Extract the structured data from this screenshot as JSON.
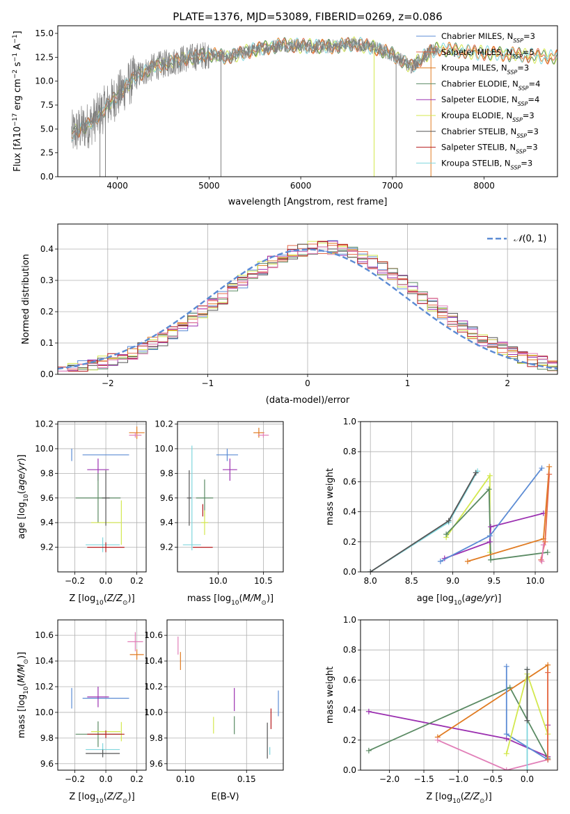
{
  "title": "PLATE=1376, MJD=53089, FIBERID=0269, z=0.086",
  "colors": {
    "chabrier_miles": "#5b8bd4",
    "salpeter_miles": "#e56a4a",
    "kroupa_miles": "#e07b22",
    "chabrier_elodie": "#5a8a63",
    "salpeter_elodie": "#9b30b0",
    "kroupa_elodie": "#d3e84e",
    "chabrier_stelib": "#555555",
    "salpeter_stelib": "#b5191c",
    "kroupa_stelib": "#7fd6dd",
    "data": "#808080",
    "normal": "#5b8bd4",
    "pink": "#e17fb8"
  },
  "chart_data": [
    {
      "id": "spectrum",
      "type": "line",
      "xlabel": "wavelength [Angstrom, rest frame]",
      "ylabel_html": "Flux [f<tspan font-style='italic'>λ</tspan>10<tspan baseline-shift='super' font-size='9'>−17</tspan> erg cm<tspan baseline-shift='super' font-size='9'>−2</tspan> s<tspan baseline-shift='super' font-size='9'>−1</tspan> A<tspan baseline-shift='super' font-size='9'>−1</tspan>]",
      "xlim": [
        3350,
        8800
      ],
      "ylim": [
        0,
        15.8
      ],
      "xticks": [
        4000,
        5000,
        6000,
        7000,
        8000
      ],
      "yticks": [
        "0.0",
        "2.5",
        "5.0",
        "7.5",
        "10.0",
        "12.5",
        "15.0"
      ],
      "legend": [
        {
          "label": "Chabrier MILES, N",
          "sub": "SSP",
          "eq": "=3",
          "color_key": "chabrier_miles"
        },
        {
          "label": "Salpeter MILES, N",
          "sub": "SSP",
          "eq": "=5",
          "color_key": "salpeter_miles"
        },
        {
          "label": "Kroupa MILES, N",
          "sub": "SSP",
          "eq": "=3",
          "color_key": "kroupa_miles"
        },
        {
          "label": "Chabrier ELODIE, N",
          "sub": "SSP",
          "eq": "=4",
          "color_key": "chabrier_elodie"
        },
        {
          "label": "Salpeter ELODIE, N",
          "sub": "SSP",
          "eq": "=4",
          "color_key": "salpeter_elodie"
        },
        {
          "label": "Kroupa ELODIE, N",
          "sub": "SSP",
          "eq": "=3",
          "color_key": "kroupa_elodie"
        },
        {
          "label": "Chabrier STELIB, N",
          "sub": "SSP",
          "eq": "=3",
          "color_key": "chabrier_stelib"
        },
        {
          "label": "Salpeter STELIB, N",
          "sub": "SSP",
          "eq": "=3",
          "color_key": "salpeter_stelib"
        },
        {
          "label": "Kroupa STELIB, N",
          "sub": "SSP",
          "eq": "=3",
          "color_key": "kroupa_stelib"
        }
      ],
      "continuum": [
        [
          3500,
          4.5
        ],
        [
          3700,
          5.5
        ],
        [
          3900,
          7.5
        ],
        [
          4000,
          8.5
        ],
        [
          4200,
          10.5
        ],
        [
          4400,
          11.5
        ],
        [
          4700,
          12.3
        ],
        [
          5000,
          12.8
        ],
        [
          5200,
          12.5
        ],
        [
          5500,
          13.3
        ],
        [
          5800,
          13.8
        ],
        [
          6000,
          13.7
        ],
        [
          6300,
          13.6
        ],
        [
          6600,
          13.9
        ],
        [
          6800,
          13.5
        ],
        [
          7000,
          12.8
        ],
        [
          7100,
          12.2
        ],
        [
          7200,
          11.5
        ],
        [
          7400,
          13.0
        ],
        [
          7500,
          13.4
        ],
        [
          7700,
          13.2
        ],
        [
          7900,
          13.0
        ],
        [
          8300,
          12.8
        ],
        [
          8800,
          12.5
        ]
      ],
      "spikes": [
        5130,
        6800,
        7040,
        7420,
        3810,
        3870
      ]
    },
    {
      "id": "residuals",
      "type": "histogram",
      "xlabel": "(data-model)/error",
      "ylabel": "Normed distribution",
      "legend_label": "N(0, 1)",
      "xlim": [
        -2.5,
        2.5
      ],
      "ylim": [
        0,
        0.48
      ],
      "xticks": [
        "−2",
        "−1",
        "0",
        "1",
        "2"
      ],
      "yticks": [
        "0.0",
        "0.1",
        "0.2",
        "0.3",
        "0.4"
      ],
      "bin_width": 0.1
    },
    {
      "id": "age_vs_Z",
      "type": "scatter",
      "xlabel": "Z [log10(Z/Z⊙)]",
      "ylabel": "age [log10(age/yr)]",
      "xlim": [
        -0.31,
        0.26
      ],
      "ylim": [
        9.0,
        10.22
      ],
      "xticks": [
        "−0.2",
        "0.0",
        "0.2"
      ],
      "yticks": [
        "9.2",
        "9.4",
        "9.6",
        "9.8",
        "10.0",
        "10.2"
      ],
      "points": [
        {
          "k": "chabrier_miles",
          "x": -0.0,
          "y": 9.95,
          "xe": 0.26,
          "ye": 0.1,
          "vx": -0.22
        },
        {
          "k": "salpeter_elodie",
          "x": -0.05,
          "y": 9.83,
          "xe": 0.1,
          "ye": 0.18
        },
        {
          "k": "chabrier_elodie",
          "x": -0.05,
          "y": 9.6,
          "xe": 0.25,
          "ye": 0.4
        },
        {
          "k": "kroupa_elodie",
          "x": 0.0,
          "y": 9.4,
          "xe": 0.15,
          "ye": 0.36,
          "vx": 0.1
        },
        {
          "k": "kroupa_stelib",
          "x": -0.02,
          "y": 9.22,
          "xe": 0.18,
          "ye": 0.12
        },
        {
          "k": "salpeter_stelib",
          "x": 0.0,
          "y": 9.2,
          "xe": 0.2,
          "ye": 0.08
        },
        {
          "k": "kroupa_miles",
          "x": 0.2,
          "y": 10.13,
          "xe": 0.06,
          "ye": 0.1
        },
        {
          "k": "pink",
          "x": 0.19,
          "y": 10.11,
          "xe": 0.04,
          "ye": 0.04
        },
        {
          "k": "chabrier_stelib",
          "x": 0.0,
          "y": 9.6,
          "xe": 0.01,
          "ye": 0.45
        }
      ]
    },
    {
      "id": "age_vs_mass",
      "type": "scatter",
      "xlabel": "mass [log10(M/M⊙)]",
      "ylabel": "",
      "xlim": [
        9.55,
        10.72
      ],
      "ylim": [
        9.0,
        10.22
      ],
      "xticks": [
        "10.0",
        "10.5"
      ],
      "yticks": [
        "9.2",
        "9.4",
        "9.6",
        "9.8",
        "10.0",
        "10.2"
      ],
      "points": [
        {
          "k": "chabrier_miles",
          "x": 10.1,
          "y": 9.95,
          "xe": 0.2,
          "ye": 0.1
        },
        {
          "k": "salpeter_elodie",
          "x": 10.13,
          "y": 9.83,
          "xe": 0.12,
          "ye": 0.18
        },
        {
          "k": "chabrier_elodie",
          "x": 9.85,
          "y": 9.6,
          "xe": 0.15,
          "ye": 0.3
        },
        {
          "k": "kroupa_elodie",
          "x": 9.85,
          "y": 9.4,
          "xe": 0.04,
          "ye": 0.2
        },
        {
          "k": "kroupa_stelib",
          "x": 9.71,
          "y": 9.22,
          "xe": 0.16,
          "ye": 0.85,
          "vy": 9.6
        },
        {
          "k": "salpeter_stelib",
          "x": 9.83,
          "y": 9.2,
          "xe": 0.18,
          "ye": 0.1,
          "vy": 9.5
        },
        {
          "k": "kroupa_miles",
          "x": 10.45,
          "y": 10.13,
          "xe": 0.08,
          "ye": 0.08
        },
        {
          "k": "pink",
          "x": 10.5,
          "y": 10.11,
          "xe": 0.08,
          "ye": 0.04
        },
        {
          "k": "chabrier_stelib",
          "x": 9.68,
          "y": 9.6,
          "xe": 0.01,
          "ye": 0.45
        }
      ]
    },
    {
      "id": "weight_vs_age",
      "type": "line",
      "xlabel": "age [log10(age/yr)]",
      "ylabel": "mass weight",
      "xlim": [
        7.88,
        10.27
      ],
      "ylim": [
        0,
        1.0
      ],
      "xticks": [
        "8.0",
        "8.5",
        "9.0",
        "9.5",
        "10.0"
      ],
      "yticks": [
        "0.0",
        "0.2",
        "0.4",
        "0.6",
        "0.8",
        "1.0"
      ],
      "series": [
        {
          "k": "kroupa_stelib",
          "x": [
            8.0,
            8.95,
            9.3
          ],
          "y": [
            0.0,
            0.33,
            0.67
          ]
        },
        {
          "k": "chabrier_stelib",
          "x": [
            8.0,
            8.95,
            9.28
          ],
          "y": [
            0.0,
            0.34,
            0.66
          ]
        },
        {
          "k": "kroupa_elodie",
          "x": [
            8.92,
            9.45,
            9.45
          ],
          "y": [
            0.23,
            0.64,
            0.13
          ]
        },
        {
          "k": "chabrier_elodie",
          "x": [
            8.92,
            9.44,
            9.46,
            10.15
          ],
          "y": [
            0.25,
            0.55,
            0.08,
            0.13
          ]
        },
        {
          "k": "salpeter_elodie",
          "x": [
            8.9,
            9.45,
            9.46,
            10.1
          ],
          "y": [
            0.09,
            0.2,
            0.3,
            0.39
          ]
        },
        {
          "k": "chabrier_miles",
          "x": [
            8.85,
            9.45,
            10.08
          ],
          "y": [
            0.07,
            0.24,
            0.69
          ]
        },
        {
          "k": "kroupa_miles",
          "x": [
            9.18,
            10.1,
            10.17
          ],
          "y": [
            0.07,
            0.22,
            0.7
          ]
        },
        {
          "k": "salpeter_miles",
          "x": [
            10.07,
            10.12,
            10.17
          ],
          "y": [
            0.08,
            0.2,
            0.65
          ]
        },
        {
          "k": "pink",
          "x": [
            10.08,
            10.1
          ],
          "y": [
            0.07,
            0.18
          ]
        }
      ]
    },
    {
      "id": "mass_vs_Z",
      "type": "scatter",
      "xlabel": "Z [log10(Z/Z⊙)]",
      "ylabel": "mass [log10(M/M⊙)]",
      "xlim": [
        -0.31,
        0.26
      ],
      "ylim": [
        9.55,
        10.72
      ],
      "xticks": [
        "−0.2",
        "0.0",
        "0.2"
      ],
      "yticks": [
        "9.6",
        "9.8",
        "10.0",
        "10.2",
        "10.4",
        "10.6"
      ],
      "points": [
        {
          "k": "chabrier_miles",
          "x": -0.0,
          "y": 10.11,
          "xe": 0.26,
          "ye": 0.16,
          "vx": -0.22
        },
        {
          "k": "salpeter_elodie",
          "x": -0.05,
          "y": 10.12,
          "xe": 0.1,
          "ye": 0.16
        },
        {
          "k": "chabrier_elodie",
          "x": -0.05,
          "y": 9.83,
          "xe": 0.25,
          "ye": 0.2,
          "vx": -0.05
        },
        {
          "k": "kroupa_elodie",
          "x": 0.0,
          "y": 9.85,
          "xe": 0.15,
          "ye": 0.15,
          "vx": 0.1
        },
        {
          "k": "salpeter_stelib",
          "x": 0.0,
          "y": 9.83,
          "xe": 0.2,
          "ye": 0.06
        },
        {
          "k": "kroupa_stelib",
          "x": -0.02,
          "y": 9.71,
          "xe": 0.18,
          "ye": 0.1
        },
        {
          "k": "chabrier_stelib",
          "x": -0.02,
          "y": 9.68,
          "xe": 0.18,
          "ye": 0.06
        },
        {
          "k": "kroupa_miles",
          "x": 0.2,
          "y": 10.45,
          "xe": 0.05,
          "ye": 0.08
        },
        {
          "k": "pink",
          "x": 0.19,
          "y": 10.55,
          "xe": 0.06,
          "ye": 0.15
        }
      ]
    },
    {
      "id": "mass_vs_ebv",
      "type": "scatter",
      "xlabel": "E(B-V)",
      "ylabel": "",
      "xlim": [
        0.085,
        0.18
      ],
      "ylim": [
        9.55,
        10.72
      ],
      "xticks": [
        "0.10",
        "0.15"
      ],
      "yticks": [
        "9.6",
        "9.8",
        "10.0",
        "10.2",
        "10.4",
        "10.6"
      ],
      "points": [
        {
          "k": "pink",
          "x": 0.094,
          "y": 10.52,
          "ye": 0.14
        },
        {
          "k": "kroupa_miles",
          "x": 0.096,
          "y": 10.4,
          "ye": 0.14
        },
        {
          "k": "kroupa_elodie",
          "x": 0.123,
          "y": 9.9,
          "ye": 0.13
        },
        {
          "k": "chabrier_elodie",
          "x": 0.14,
          "y": 9.9,
          "ye": 0.14
        },
        {
          "k": "salpeter_elodie",
          "x": 0.14,
          "y": 10.1,
          "ye": 0.18
        },
        {
          "k": "chabrier_stelib",
          "x": 0.167,
          "y": 9.78,
          "ye": 0.28
        },
        {
          "k": "salpeter_stelib",
          "x": 0.17,
          "y": 9.95,
          "ye": 0.16
        },
        {
          "k": "kroupa_stelib",
          "x": 0.169,
          "y": 9.7,
          "ye": 0.06
        },
        {
          "k": "chabrier_miles",
          "x": 0.176,
          "y": 10.07,
          "ye": 0.2
        }
      ]
    },
    {
      "id": "weight_vs_Z",
      "type": "line",
      "xlabel": "Z [log10(Z/Z⊙)]",
      "ylabel": "mass weight",
      "xlim": [
        -2.42,
        0.44
      ],
      "ylim": [
        0,
        1.0
      ],
      "xticks": [
        "−2.0",
        "−1.5",
        "−1.0",
        "−0.5",
        "0.0"
      ],
      "yticks": [
        "0.0",
        "0.2",
        "0.4",
        "0.6",
        "0.8",
        "1.0"
      ],
      "series": [
        {
          "k": "salpeter_elodie",
          "x": [
            -2.3,
            -0.3,
            0.3,
            0.3
          ],
          "y": [
            0.39,
            0.21,
            0.09,
            0.3
          ]
        },
        {
          "k": "chabrier_elodie",
          "x": [
            -2.3,
            -0.25,
            0.3
          ],
          "y": [
            0.13,
            0.55,
            0.08
          ]
        },
        {
          "k": "kroupa_miles",
          "x": [
            -1.3,
            0.3,
            0.3
          ],
          "y": [
            0.22,
            0.7,
            0.07
          ]
        },
        {
          "k": "pink",
          "x": [
            -1.3,
            -0.3,
            0.3
          ],
          "y": [
            0.2,
            0.0,
            0.07
          ]
        },
        {
          "k": "chabrier_miles",
          "x": [
            -0.3,
            -0.3,
            0.3
          ],
          "y": [
            0.69,
            0.24,
            0.07
          ]
        },
        {
          "k": "kroupa_elodie",
          "x": [
            -0.3,
            0.0,
            0.3
          ],
          "y": [
            0.11,
            0.64,
            0.24
          ]
        },
        {
          "k": "kroupa_stelib",
          "x": [
            0.0,
            0.0
          ],
          "y": [
            0.0,
            0.67
          ]
        },
        {
          "k": "chabrier_stelib",
          "x": [
            0.0,
            0.0
          ],
          "y": [
            0.33,
            0.67
          ]
        },
        {
          "k": "salpeter_miles",
          "x": [
            0.3,
            0.3
          ],
          "y": [
            0.07,
            0.65
          ]
        }
      ]
    }
  ]
}
